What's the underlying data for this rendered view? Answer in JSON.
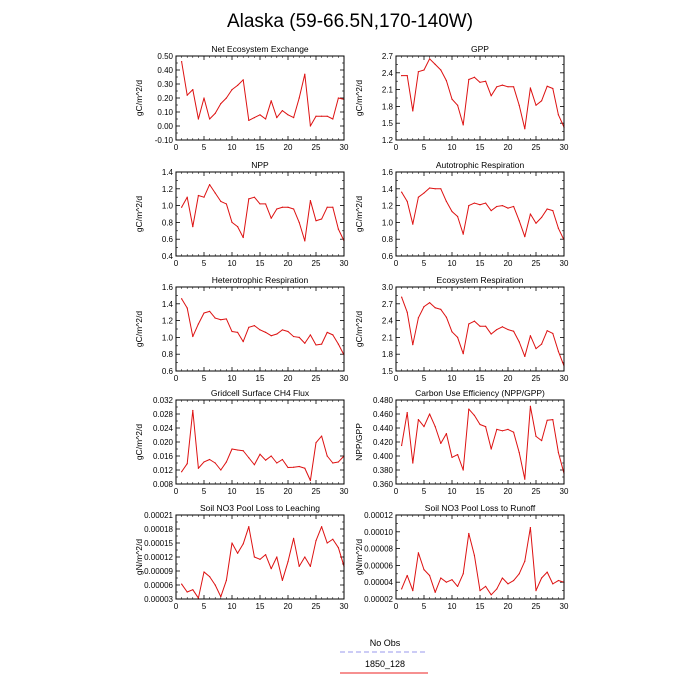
{
  "title": "Alaska (59-66.5N,170-140W)",
  "legend": {
    "placement": "bottom-center",
    "entries": [
      {
        "label": "No Obs",
        "color": "#9999ee",
        "style": "dashed"
      },
      {
        "label": "1850_128",
        "color": "#ee2222",
        "style": "solid"
      }
    ]
  },
  "line_color": "#dd1111",
  "chart_data": [
    {
      "type": "line",
      "title": "Net Ecosystem Exchange",
      "ylabel": "gC/m^2/d",
      "xlim": [
        0,
        30
      ],
      "xticks": [
        "0",
        "5",
        "10",
        "15",
        "20",
        "25",
        "30"
      ],
      "ylim": [
        -0.1,
        0.5
      ],
      "yticks": [
        "-0.10",
        "0.00",
        "0.10",
        "0.20",
        "0.30",
        "0.40",
        "0.50"
      ],
      "series": [
        {
          "x": [
            1,
            2,
            3,
            4,
            5,
            6,
            7,
            8,
            9,
            10,
            11,
            12,
            13,
            14,
            15,
            16,
            17,
            18,
            19,
            20,
            21,
            22,
            23,
            24,
            25,
            26,
            27,
            28,
            29,
            30
          ],
          "values": [
            0.46,
            0.22,
            0.26,
            0.05,
            0.2,
            0.05,
            0.09,
            0.16,
            0.2,
            0.26,
            0.29,
            0.33,
            0.04,
            0.06,
            0.08,
            0.05,
            0.18,
            0.06,
            0.11,
            0.08,
            0.06,
            0.2,
            0.37,
            0.0,
            0.07,
            0.07,
            0.07,
            0.05,
            0.2,
            0.19
          ]
        }
      ]
    },
    {
      "type": "line",
      "title": "GPP",
      "ylabel": "gC/m^2/d",
      "xlim": [
        0,
        30
      ],
      "xticks": [
        "0",
        "5",
        "10",
        "15",
        "20",
        "25",
        "30"
      ],
      "ylim": [
        1.2,
        2.7
      ],
      "yticks": [
        "1.2",
        "1.5",
        "1.8",
        "2.1",
        "2.4",
        "2.7"
      ],
      "series": [
        {
          "x": [
            1,
            2,
            3,
            4,
            5,
            6,
            7,
            8,
            9,
            10,
            11,
            12,
            13,
            14,
            15,
            16,
            17,
            18,
            19,
            20,
            21,
            22,
            23,
            24,
            25,
            26,
            27,
            28,
            29,
            30
          ],
          "values": [
            2.35,
            2.35,
            1.72,
            2.42,
            2.45,
            2.65,
            2.55,
            2.45,
            2.26,
            1.93,
            1.82,
            1.47,
            2.28,
            2.32,
            2.23,
            2.25,
            1.99,
            2.15,
            2.18,
            2.15,
            2.15,
            1.82,
            1.4,
            2.13,
            1.82,
            1.9,
            2.16,
            2.12,
            1.65,
            1.43
          ]
        }
      ]
    },
    {
      "type": "line",
      "title": "NPP",
      "ylabel": "gC/m^2/d",
      "xlim": [
        0,
        30
      ],
      "xticks": [
        "0",
        "5",
        "10",
        "15",
        "20",
        "25",
        "30"
      ],
      "ylim": [
        0.4,
        1.4
      ],
      "yticks": [
        "0.4",
        "0.6",
        "0.8",
        "1.0",
        "1.2",
        "1.4"
      ],
      "series": [
        {
          "x": [
            1,
            2,
            3,
            4,
            5,
            6,
            7,
            8,
            9,
            10,
            11,
            12,
            13,
            14,
            15,
            16,
            17,
            18,
            19,
            20,
            21,
            22,
            23,
            24,
            25,
            26,
            27,
            28,
            29,
            30
          ],
          "values": [
            0.98,
            1.1,
            0.75,
            1.12,
            1.1,
            1.25,
            1.15,
            1.05,
            1.02,
            0.8,
            0.75,
            0.62,
            1.08,
            1.1,
            1.02,
            1.02,
            0.85,
            0.96,
            0.98,
            0.98,
            0.96,
            0.8,
            0.58,
            1.06,
            0.82,
            0.84,
            0.98,
            0.98,
            0.72,
            0.58
          ]
        }
      ]
    },
    {
      "type": "line",
      "title": "Autotrophic Respiration",
      "ylabel": "gC/m^2/d",
      "xlim": [
        0,
        30
      ],
      "xticks": [
        "0",
        "5",
        "10",
        "15",
        "20",
        "25",
        "30"
      ],
      "ylim": [
        0.6,
        1.6
      ],
      "yticks": [
        "0.6",
        "0.8",
        "1.0",
        "1.2",
        "1.4",
        "1.6"
      ],
      "series": [
        {
          "x": [
            1,
            2,
            3,
            4,
            5,
            6,
            7,
            8,
            9,
            10,
            11,
            12,
            13,
            14,
            15,
            16,
            17,
            18,
            19,
            20,
            21,
            22,
            23,
            24,
            25,
            26,
            27,
            28,
            29,
            30
          ],
          "values": [
            1.36,
            1.25,
            0.98,
            1.3,
            1.35,
            1.41,
            1.4,
            1.4,
            1.25,
            1.13,
            1.07,
            0.86,
            1.2,
            1.23,
            1.21,
            1.23,
            1.14,
            1.19,
            1.2,
            1.17,
            1.19,
            1.02,
            0.83,
            1.1,
            0.99,
            1.06,
            1.16,
            1.14,
            0.93,
            0.79
          ]
        }
      ]
    },
    {
      "type": "line",
      "title": "Heterotrophic Respiration",
      "ylabel": "gC/m^2/d",
      "xlim": [
        0,
        30
      ],
      "xticks": [
        "0",
        "5",
        "10",
        "15",
        "20",
        "25",
        "30"
      ],
      "ylim": [
        0.6,
        1.6
      ],
      "yticks": [
        "0.6",
        "0.8",
        "1.0",
        "1.2",
        "1.4",
        "1.6"
      ],
      "series": [
        {
          "x": [
            1,
            2,
            3,
            4,
            5,
            6,
            7,
            8,
            9,
            10,
            11,
            12,
            13,
            14,
            15,
            16,
            17,
            18,
            19,
            20,
            21,
            22,
            23,
            24,
            25,
            26,
            27,
            28,
            29,
            30
          ],
          "values": [
            1.46,
            1.35,
            1.01,
            1.16,
            1.29,
            1.31,
            1.23,
            1.21,
            1.22,
            1.07,
            1.06,
            0.95,
            1.12,
            1.14,
            1.09,
            1.06,
            1.02,
            1.04,
            1.09,
            1.07,
            1.01,
            1.0,
            0.93,
            1.03,
            0.91,
            0.92,
            1.06,
            1.03,
            0.92,
            0.79
          ]
        }
      ]
    },
    {
      "type": "line",
      "title": "Ecosystem Respiration",
      "ylabel": "gC/m^2/d",
      "xlim": [
        0,
        30
      ],
      "xticks": [
        "0",
        "5",
        "10",
        "15",
        "20",
        "25",
        "30"
      ],
      "ylim": [
        1.5,
        3.0
      ],
      "yticks": [
        "1.5",
        "1.8",
        "2.1",
        "2.4",
        "2.7",
        "3.0"
      ],
      "series": [
        {
          "x": [
            1,
            2,
            3,
            4,
            5,
            6,
            7,
            8,
            9,
            10,
            11,
            12,
            13,
            14,
            15,
            16,
            17,
            18,
            19,
            20,
            21,
            22,
            23,
            24,
            25,
            26,
            27,
            28,
            29,
            30
          ],
          "values": [
            2.82,
            2.55,
            1.97,
            2.45,
            2.65,
            2.72,
            2.63,
            2.6,
            2.46,
            2.2,
            2.1,
            1.81,
            2.34,
            2.39,
            2.3,
            2.3,
            2.16,
            2.24,
            2.29,
            2.24,
            2.21,
            2.02,
            1.76,
            2.13,
            1.9,
            1.98,
            2.22,
            2.17,
            1.85,
            1.59
          ]
        }
      ]
    },
    {
      "type": "line",
      "title": "Gridcell Surface CH4 Flux",
      "ylabel": "gC/m^2/d",
      "xlim": [
        0,
        30
      ],
      "xticks": [
        "0",
        "5",
        "10",
        "15",
        "20",
        "25",
        "30"
      ],
      "ylim": [
        0.008,
        0.032
      ],
      "yticks": [
        "0.008",
        "0.012",
        "0.016",
        "0.020",
        "0.024",
        "0.028",
        "0.032"
      ],
      "series": [
        {
          "x": [
            1,
            2,
            3,
            4,
            5,
            6,
            7,
            8,
            9,
            10,
            11,
            12,
            13,
            14,
            15,
            16,
            17,
            18,
            19,
            20,
            21,
            22,
            23,
            24,
            25,
            26,
            27,
            28,
            29,
            30
          ],
          "values": [
            0.0115,
            0.0138,
            0.029,
            0.0125,
            0.0143,
            0.015,
            0.014,
            0.012,
            0.0143,
            0.018,
            0.0177,
            0.0175,
            0.0155,
            0.0135,
            0.0165,
            0.0148,
            0.016,
            0.014,
            0.015,
            0.0127,
            0.0128,
            0.013,
            0.0125,
            0.009,
            0.0198,
            0.0217,
            0.016,
            0.014,
            0.0143,
            0.016
          ]
        }
      ]
    },
    {
      "type": "line",
      "title": "Carbon Use Efficiency (NPP/GPP)",
      "ylabel": "NPP/GPP",
      "xlim": [
        0,
        30
      ],
      "xticks": [
        "0",
        "5",
        "10",
        "15",
        "20",
        "25",
        "30"
      ],
      "ylim": [
        0.36,
        0.48
      ],
      "yticks": [
        "0.360",
        "0.380",
        "0.400",
        "0.420",
        "0.440",
        "0.460",
        "0.480"
      ],
      "series": [
        {
          "x": [
            1,
            2,
            3,
            4,
            5,
            6,
            7,
            8,
            9,
            10,
            11,
            12,
            13,
            14,
            15,
            16,
            17,
            18,
            19,
            20,
            21,
            22,
            23,
            24,
            25,
            26,
            27,
            28,
            29,
            30
          ],
          "values": [
            0.415,
            0.462,
            0.39,
            0.452,
            0.442,
            0.46,
            0.442,
            0.418,
            0.432,
            0.398,
            0.402,
            0.38,
            0.467,
            0.458,
            0.445,
            0.442,
            0.41,
            0.438,
            0.436,
            0.438,
            0.434,
            0.405,
            0.367,
            0.471,
            0.428,
            0.422,
            0.451,
            0.452,
            0.405,
            0.375
          ]
        }
      ]
    },
    {
      "type": "line",
      "title": "Soil NO3 Pool Loss to Leaching",
      "ylabel": "gN/m^2/d",
      "xlim": [
        0,
        30
      ],
      "xticks": [
        "0",
        "5",
        "10",
        "15",
        "20",
        "25",
        "30"
      ],
      "ylim": [
        3e-05,
        0.00021
      ],
      "yticks": [
        "0.00003",
        "0.00006",
        "0.00009",
        "0.00012",
        "0.00015",
        "0.00018",
        "0.00021"
      ],
      "series": [
        {
          "x": [
            1,
            2,
            3,
            4,
            5,
            6,
            7,
            8,
            9,
            10,
            11,
            12,
            13,
            14,
            15,
            16,
            17,
            18,
            19,
            20,
            21,
            22,
            23,
            24,
            25,
            26,
            27,
            28,
            29,
            30
          ],
          "values": [
            6.2e-05,
            4.5e-05,
            5e-05,
            3.2e-05,
            8.8e-05,
            7.8e-05,
            6e-05,
            3.5e-05,
            7e-05,
            0.00015,
            0.000128,
            0.000148,
            0.000185,
            0.00012,
            0.000115,
            0.000125,
            9.5e-05,
            0.00012,
            7e-05,
            0.00011,
            0.00016,
            0.0001,
            0.00012,
            0.0001,
            0.000155,
            0.000185,
            0.00015,
            0.000158,
            0.00014,
            0.0001
          ]
        }
      ]
    },
    {
      "type": "line",
      "title": "Soil NO3 Pool Loss to Runoff",
      "ylabel": "gN/m^2/d",
      "xlim": [
        0,
        30
      ],
      "xticks": [
        "0",
        "5",
        "10",
        "15",
        "20",
        "25",
        "30"
      ],
      "ylim": [
        2e-05,
        0.00012
      ],
      "yticks": [
        "0.00002",
        "0.00004",
        "0.00006",
        "0.00008",
        "0.00010",
        "0.00012"
      ],
      "series": [
        {
          "x": [
            1,
            2,
            3,
            4,
            5,
            6,
            7,
            8,
            9,
            10,
            11,
            12,
            13,
            14,
            15,
            16,
            17,
            18,
            19,
            20,
            21,
            22,
            23,
            24,
            25,
            26,
            27,
            28,
            29,
            30
          ],
          "values": [
            3.2e-05,
            4.8e-05,
            3e-05,
            7.5e-05,
            5.5e-05,
            4.8e-05,
            2.8e-05,
            4.5e-05,
            4e-05,
            4.3e-05,
            3.5e-05,
            5e-05,
            9.8e-05,
            7.2e-05,
            3e-05,
            3.5e-05,
            2.5e-05,
            3.2e-05,
            4.5e-05,
            3.8e-05,
            4.2e-05,
            5e-05,
            6.5e-05,
            0.000105,
            3e-05,
            4.5e-05,
            5.2e-05,
            3.8e-05,
            4.2e-05,
            4e-05
          ]
        }
      ]
    }
  ]
}
